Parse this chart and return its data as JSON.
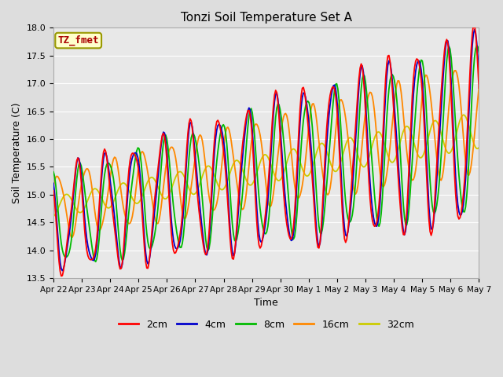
{
  "title": "Tonzi Soil Temperature Set A",
  "xlabel": "Time",
  "ylabel": "Soil Temperature (C)",
  "ylim": [
    13.5,
    18.0
  ],
  "annotation_label": "TZ_fmet",
  "legend_labels": [
    "2cm",
    "4cm",
    "8cm",
    "16cm",
    "32cm"
  ],
  "line_colors": [
    "#ff0000",
    "#0000cc",
    "#00bb00",
    "#ff8800",
    "#cccc00"
  ],
  "xtick_labels": [
    "Apr 22",
    "Apr 23",
    "Apr 24",
    "Apr 25",
    "Apr 26",
    "Apr 27",
    "Apr 28",
    "Apr 29",
    "Apr 30",
    "May 1",
    "May 2",
    "May 3",
    "May 4",
    "May 5",
    "May 6",
    "May 7"
  ],
  "bg_color": "#dddddd",
  "plot_bg_color": "#e8e8e8",
  "grid_color": "#ffffff",
  "yticks": [
    13.5,
    14.0,
    14.5,
    15.0,
    15.5,
    16.0,
    16.5,
    17.0,
    17.5,
    18.0
  ],
  "title_fontsize": 11,
  "axis_label_fontsize": 9,
  "tick_fontsize": 8
}
